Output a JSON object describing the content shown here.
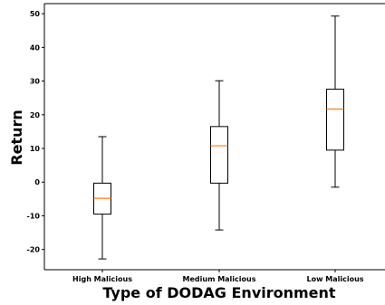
{
  "chart_data": {
    "type": "box",
    "title": "",
    "xlabel": "Type of DODAG Environment",
    "ylabel": "Return",
    "categories": [
      "High Malicious",
      "Medium Malicious",
      "Low Malicious"
    ],
    "boxes": [
      {
        "category": "High Malicious",
        "whisker_low": -22.8,
        "q1": -9.5,
        "median": -4.8,
        "q3": -0.3,
        "whisker_high": 13.5
      },
      {
        "category": "Medium Malicious",
        "whisker_low": -14.2,
        "q1": -0.3,
        "median": 10.8,
        "q3": 16.5,
        "whisker_high": 30.1
      },
      {
        "category": "Low Malicious",
        "whisker_low": -1.5,
        "q1": 9.5,
        "median": 21.7,
        "q3": 27.6,
        "whisker_high": 49.3
      }
    ],
    "ylim": [
      -26,
      53
    ],
    "yticks": [
      -20,
      -10,
      0,
      10,
      20,
      30,
      40,
      50
    ],
    "ytick_labels": [
      "-20",
      "-10",
      "0",
      "10",
      "20",
      "30",
      "40",
      "50"
    ],
    "grid": false,
    "colors": {
      "box_edge": "#000000",
      "median_line": "#ff7f0e",
      "axis": "#000000"
    }
  }
}
